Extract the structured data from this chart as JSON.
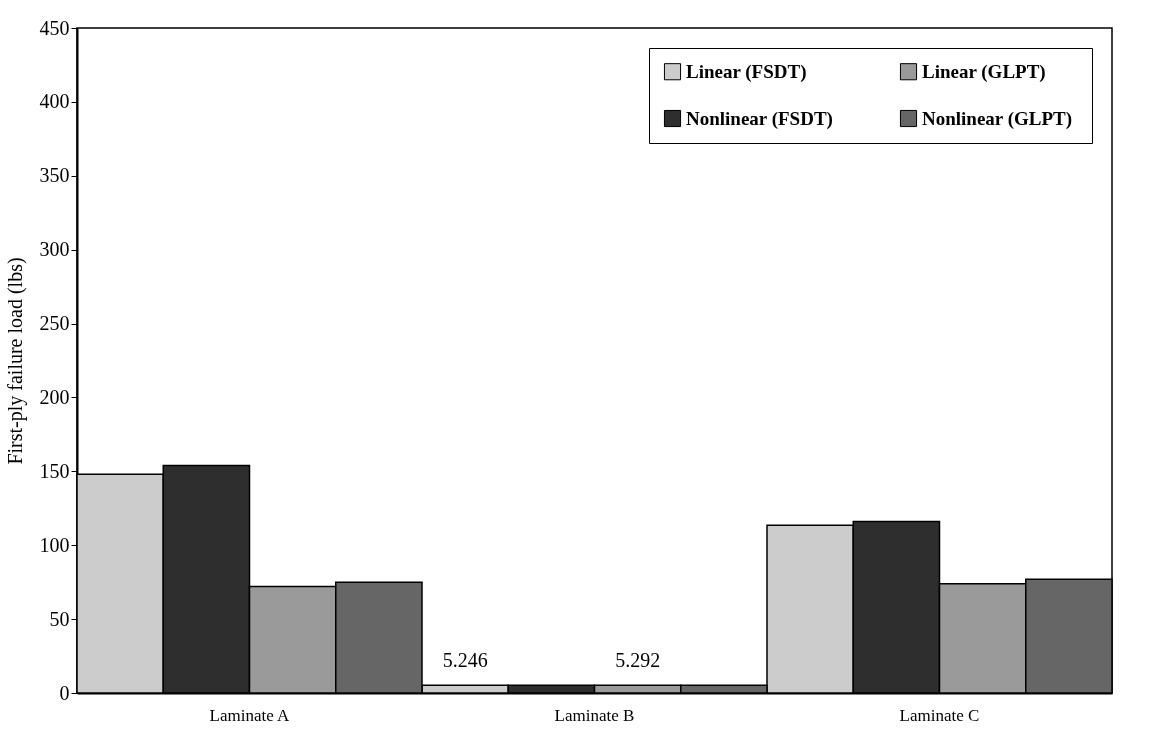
{
  "chart_data": {
    "type": "bar",
    "ylabel": "First-ply failure load (lbs)",
    "categories": [
      "Laminate A",
      "Laminate B",
      "Laminate C"
    ],
    "series": [
      {
        "name": "Linear  (FSDT)",
        "color": "#cccccc",
        "values": [
          148,
          5.246,
          113.5
        ],
        "value_labels": [
          null,
          "5.246",
          null
        ]
      },
      {
        "name": "Nonlinear  (FSDT)",
        "color": "#2e2e2e",
        "values": [
          154,
          5.2,
          116
        ]
      },
      {
        "name": "Linear  (GLPT)",
        "color": "#9a9a9a",
        "values": [
          72,
          5.292,
          74
        ],
        "value_labels": [
          null,
          "5.292",
          null
        ]
      },
      {
        "name": "Nonlinear  (GLPT)",
        "color": "#666666",
        "values": [
          75,
          5.3,
          77
        ]
      }
    ],
    "ylim": [
      0,
      450
    ],
    "yticks": [
      0,
      50,
      100,
      150,
      200,
      250,
      300,
      350,
      400,
      450
    ],
    "grid": false,
    "legend": "top right"
  }
}
